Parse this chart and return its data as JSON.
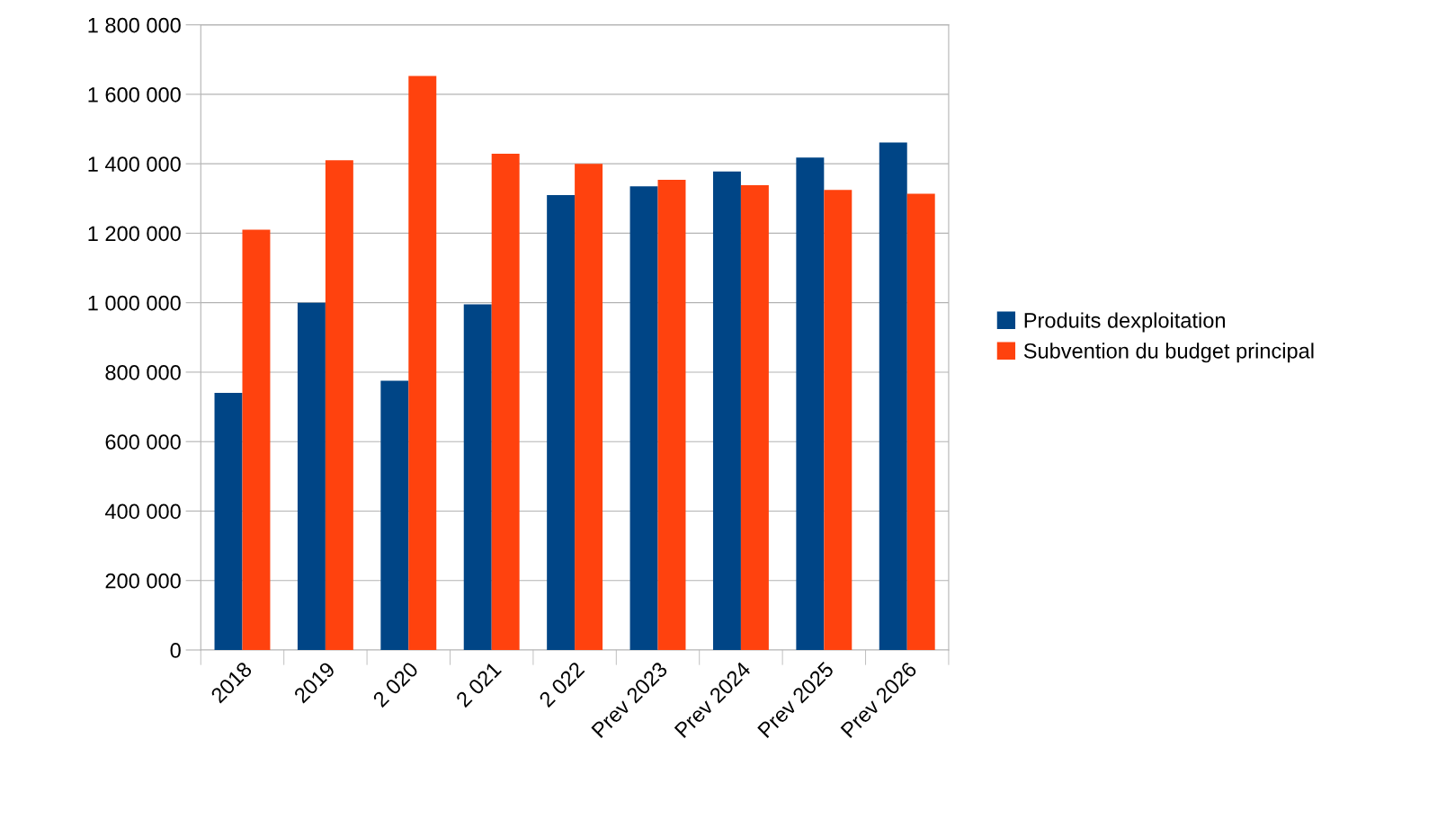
{
  "chart_data": {
    "type": "bar",
    "categories": [
      "2018",
      "2019",
      "2 020",
      "2 021",
      "2 022",
      "Prev 2023",
      "Prev 2024",
      "Prev 2025",
      "Prev 2026"
    ],
    "series": [
      {
        "name": "Produits dexploitation",
        "color": "#004586",
        "values": [
          740000,
          1000000,
          775000,
          995000,
          1310000,
          1335000,
          1378000,
          1418000,
          1461000
        ]
      },
      {
        "name": "Subvention du budget principal",
        "color": "#ff420e",
        "values": [
          1210000,
          1410000,
          1653000,
          1429000,
          1400000,
          1354000,
          1338000,
          1325000,
          1314000
        ]
      }
    ],
    "ylim": [
      0,
      1800000
    ],
    "yticks": [
      0,
      {
        "value": 200000,
        "label": "200 000"
      },
      {
        "value": 400000,
        "label": "400 000"
      },
      {
        "value": 600000,
        "label": "600 000"
      },
      {
        "value": 800000,
        "label": "800 000"
      },
      {
        "value": 1000000,
        "label": "1 000 000"
      },
      {
        "value": 1200000,
        "label": "1 200 000"
      },
      {
        "value": 1400000,
        "label": "1 400 000"
      },
      {
        "value": 1600000,
        "label": "1 600 000"
      },
      {
        "value": 1800000,
        "label": "1 800 000"
      }
    ],
    "grid": "y",
    "legend": "right"
  }
}
